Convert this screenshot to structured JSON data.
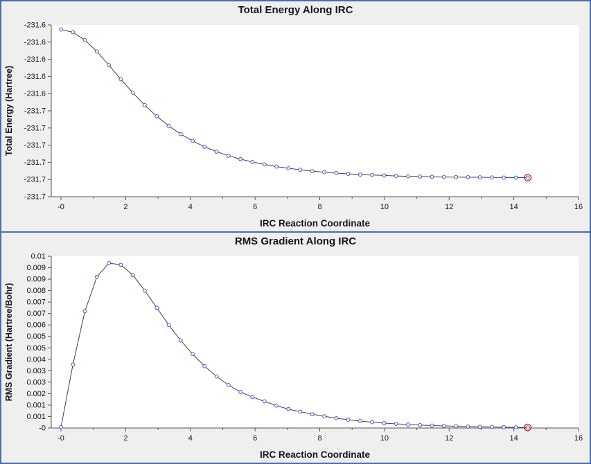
{
  "window": {
    "border_color": "#4a6da7",
    "background": "#efefef",
    "plot_background": "#ffffff",
    "axis_color": "#555555",
    "text_color": "#141420"
  },
  "chart_data": [
    {
      "type": "line",
      "name": "total-energy",
      "title": "Total Energy Along IRC",
      "xlabel": "IRC Reaction Coordinate",
      "ylabel": "Total Energy (Hartree)",
      "legend": "none",
      "grid": false,
      "marker": "open-circle",
      "marker_color": "#3c55c5",
      "line_color": "#404040",
      "highlight_color": "#d02020",
      "highlight_last_point": true,
      "xlim": [
        -0.3,
        16
      ],
      "ylim": [
        -231.735,
        -231.585
      ],
      "xticks": [
        {
          "v": 0,
          "label": "-0"
        },
        {
          "v": 2,
          "label": "2"
        },
        {
          "v": 4,
          "label": "4"
        },
        {
          "v": 6,
          "label": "6"
        },
        {
          "v": 8,
          "label": "8"
        },
        {
          "v": 10,
          "label": "10"
        },
        {
          "v": 12,
          "label": "12"
        },
        {
          "v": 14,
          "label": "14"
        },
        {
          "v": 16,
          "label": "16"
        }
      ],
      "minor_xticks": [
        1,
        3,
        5,
        7,
        9,
        11,
        13,
        15
      ],
      "yticks": [
        {
          "v": -231.585,
          "label": "-231.6"
        },
        {
          "v": -231.6,
          "label": "-231.6"
        },
        {
          "v": -231.615,
          "label": "-231.6"
        },
        {
          "v": -231.63,
          "label": "-231.6"
        },
        {
          "v": -231.645,
          "label": "-231.6"
        },
        {
          "v": -231.66,
          "label": "-231.7"
        },
        {
          "v": -231.675,
          "label": "-231.7"
        },
        {
          "v": -231.69,
          "label": "-231.7"
        },
        {
          "v": -231.705,
          "label": "-231.7"
        },
        {
          "v": -231.72,
          "label": "-231.7"
        },
        {
          "v": -231.735,
          "label": "-231.7"
        }
      ],
      "x": [
        0,
        0.37,
        0.74,
        1.11,
        1.48,
        1.85,
        2.22,
        2.59,
        2.96,
        3.33,
        3.7,
        4.07,
        4.44,
        4.81,
        5.18,
        5.55,
        5.92,
        6.29,
        6.66,
        7.03,
        7.4,
        7.77,
        8.14,
        8.51,
        8.88,
        9.25,
        9.62,
        9.99,
        10.36,
        10.73,
        11.1,
        11.47,
        11.84,
        12.21,
        12.58,
        12.95,
        13.32,
        13.69,
        14.06,
        14.43
      ],
      "y": [
        -231.589,
        -231.5914,
        -231.5982,
        -231.6082,
        -231.6201,
        -231.6324,
        -231.6442,
        -231.6551,
        -231.6648,
        -231.6731,
        -231.6803,
        -231.6863,
        -231.6914,
        -231.6957,
        -231.6992,
        -231.7022,
        -231.7047,
        -231.7068,
        -231.7087,
        -231.7102,
        -231.7115,
        -231.7127,
        -231.7136,
        -231.7144,
        -231.7151,
        -231.7157,
        -231.7161,
        -231.7165,
        -231.7169,
        -231.7172,
        -231.7174,
        -231.7176,
        -231.7178,
        -231.7179,
        -231.718,
        -231.7181,
        -231.7182,
        -231.7183,
        -231.7184,
        -231.7184
      ]
    },
    {
      "type": "line",
      "name": "rms-gradient",
      "title": "RMS Gradient Along IRC",
      "xlabel": "IRC Reaction Coordinate",
      "ylabel": "RMS Gradient (Hartree/Bohr)",
      "legend": "none",
      "grid": false,
      "marker": "open-circle",
      "marker_color": "#3c55c5",
      "line_color": "#404040",
      "highlight_color": "#d02020",
      "highlight_last_point": true,
      "xlim": [
        -0.3,
        16
      ],
      "ylim": [
        0,
        0.01
      ],
      "xticks": [
        {
          "v": 0,
          "label": "-0"
        },
        {
          "v": 2,
          "label": "2"
        },
        {
          "v": 4,
          "label": "4"
        },
        {
          "v": 6,
          "label": "6"
        },
        {
          "v": 8,
          "label": "8"
        },
        {
          "v": 10,
          "label": "10"
        },
        {
          "v": 12,
          "label": "12"
        },
        {
          "v": 14,
          "label": "14"
        },
        {
          "v": 16,
          "label": "16"
        }
      ],
      "minor_xticks": [
        1,
        3,
        5,
        7,
        9,
        11,
        13,
        15
      ],
      "yticks": [
        {
          "v": 0.01,
          "label": "0.01"
        },
        {
          "v": 0.009333,
          "label": "0.009"
        },
        {
          "v": 0.008667,
          "label": "0.009"
        },
        {
          "v": 0.008,
          "label": "0.008"
        },
        {
          "v": 0.007333,
          "label": "0.007"
        },
        {
          "v": 0.006667,
          "label": "0.007"
        },
        {
          "v": 0.006,
          "label": "0.006"
        },
        {
          "v": 0.005333,
          "label": "0.005"
        },
        {
          "v": 0.004667,
          "label": "0.005"
        },
        {
          "v": 0.004,
          "label": "0.004"
        },
        {
          "v": 0.003333,
          "label": "0.003"
        },
        {
          "v": 0.002667,
          "label": "0.003"
        },
        {
          "v": 0.002,
          "label": "0.002"
        },
        {
          "v": 0.001333,
          "label": "0.001"
        },
        {
          "v": 0.000667,
          "label": "0.001"
        },
        {
          "v": 0,
          "label": "-0"
        }
      ],
      "x": [
        0,
        0.37,
        0.74,
        1.11,
        1.48,
        1.85,
        2.22,
        2.59,
        2.96,
        3.33,
        3.7,
        4.07,
        4.44,
        4.81,
        5.18,
        5.55,
        5.92,
        6.29,
        6.66,
        7.03,
        7.4,
        7.77,
        8.14,
        8.51,
        8.88,
        9.25,
        9.62,
        9.99,
        10.36,
        10.73,
        11.1,
        11.47,
        11.84,
        12.21,
        12.58,
        12.95,
        13.32,
        13.69,
        14.06,
        14.43
      ],
      "y": [
        5e-05,
        0.0037,
        0.0068,
        0.0088,
        0.0096,
        0.0095,
        0.0089,
        0.008,
        0.007,
        0.006,
        0.0051,
        0.0043,
        0.0036,
        0.003,
        0.0025,
        0.0021,
        0.0018,
        0.00155,
        0.0013,
        0.0011,
        0.00095,
        0.0008,
        0.00068,
        0.00057,
        0.00048,
        0.0004,
        0.00034,
        0.00028,
        0.00024,
        0.0002,
        0.00017,
        0.00014,
        0.00012,
        0.0001,
        8e-05,
        7e-05,
        6e-05,
        5e-05,
        4e-05,
        3e-05
      ]
    }
  ]
}
